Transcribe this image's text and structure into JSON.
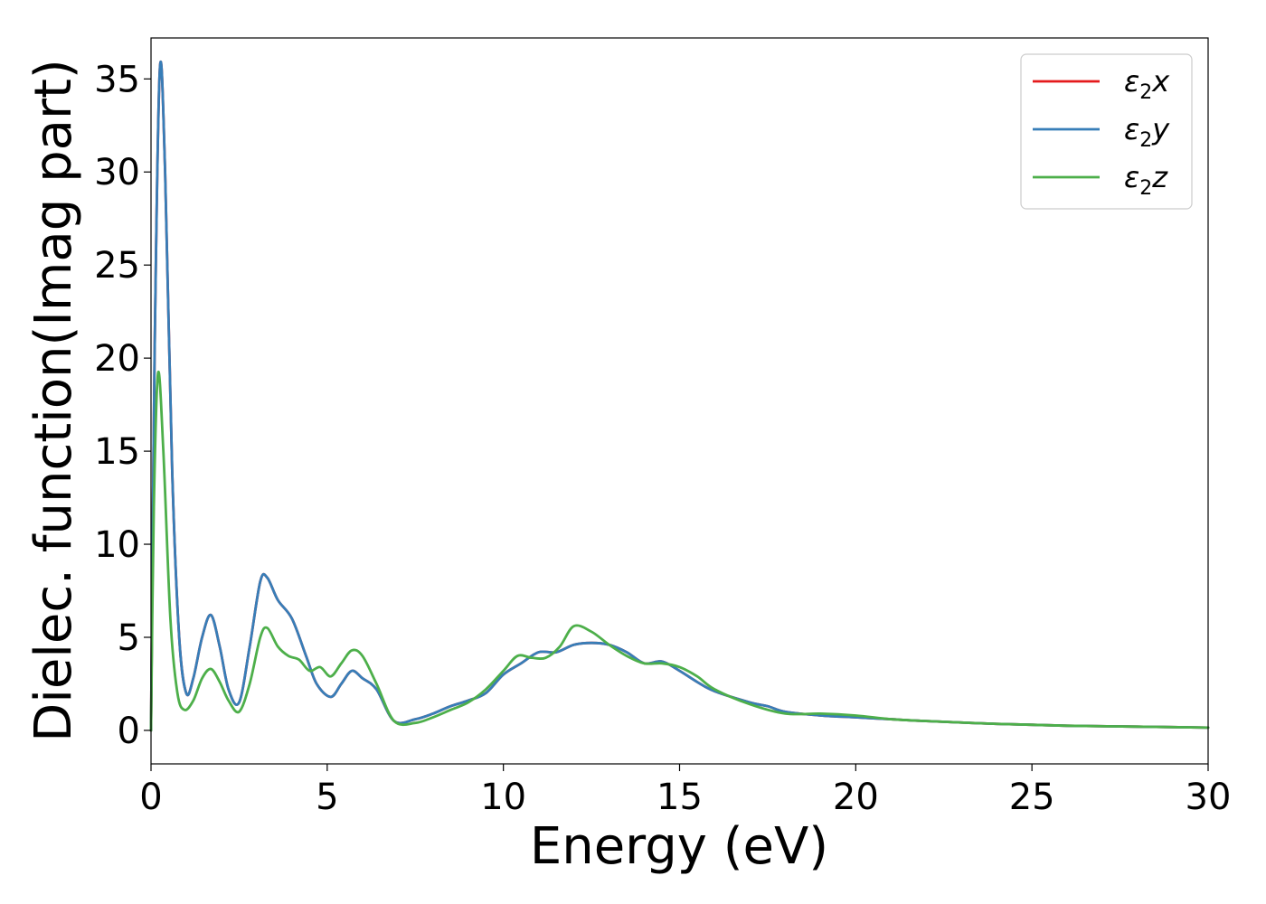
{
  "chart_data": {
    "type": "line",
    "title": "",
    "xlabel": "Energy (eV)",
    "ylabel": "Dielec. function(Imag part)",
    "xlim": [
      0,
      30
    ],
    "ylim": [
      -1.8,
      37.2
    ],
    "xticks": [
      0,
      5,
      10,
      15,
      20,
      25,
      30
    ],
    "yticks": [
      0,
      5,
      10,
      15,
      20,
      25,
      30,
      35
    ],
    "grid": false,
    "legend_position": "top-right",
    "series": [
      {
        "name": "ε2x",
        "legend_base": "ε",
        "legend_sub": "2",
        "legend_var": "x",
        "color": "#e41a1c",
        "x": [
          0,
          0.1,
          0.25,
          0.4,
          0.6,
          0.8,
          1.0,
          1.2,
          1.45,
          1.7,
          1.95,
          2.2,
          2.5,
          2.8,
          3.1,
          3.3,
          3.6,
          4.0,
          4.4,
          4.7,
          5.1,
          5.4,
          5.7,
          6.0,
          6.4,
          6.9,
          7.5,
          8.0,
          8.5,
          9.0,
          9.5,
          10.0,
          10.5,
          11.0,
          11.5,
          12.0,
          12.5,
          13.0,
          13.5,
          14.0,
          14.5,
          15.0,
          15.5,
          16.0,
          17.0,
          17.5,
          18.0,
          19.0,
          20.0,
          21.0,
          22.0,
          24.0,
          26.0,
          28.0,
          30.0
        ],
        "values": [
          0,
          20,
          35.5,
          30,
          14,
          5,
          2.0,
          2.8,
          5.0,
          6.2,
          4.5,
          2.2,
          1.5,
          4.5,
          8.0,
          8.2,
          7.0,
          6.0,
          4.0,
          2.5,
          1.8,
          2.5,
          3.2,
          2.8,
          2.2,
          0.5,
          0.6,
          0.9,
          1.3,
          1.6,
          2.0,
          3.0,
          3.6,
          4.2,
          4.2,
          4.6,
          4.7,
          4.6,
          4.2,
          3.6,
          3.7,
          3.2,
          2.6,
          2.1,
          1.5,
          1.3,
          1.0,
          0.8,
          0.7,
          0.6,
          0.5,
          0.35,
          0.25,
          0.2,
          0.15
        ]
      },
      {
        "name": "ε2y",
        "legend_base": "ε",
        "legend_sub": "2",
        "legend_var": "y",
        "color": "#377eb8",
        "x": [
          0,
          0.1,
          0.25,
          0.4,
          0.6,
          0.8,
          1.0,
          1.2,
          1.45,
          1.7,
          1.95,
          2.2,
          2.5,
          2.8,
          3.1,
          3.3,
          3.6,
          4.0,
          4.4,
          4.7,
          5.1,
          5.4,
          5.7,
          6.0,
          6.4,
          6.9,
          7.5,
          8.0,
          8.5,
          9.0,
          9.5,
          10.0,
          10.5,
          11.0,
          11.5,
          12.0,
          12.5,
          13.0,
          13.5,
          14.0,
          14.5,
          15.0,
          15.5,
          16.0,
          17.0,
          17.5,
          18.0,
          19.0,
          20.0,
          21.0,
          22.0,
          24.0,
          26.0,
          28.0,
          30.0
        ],
        "values": [
          0,
          20,
          35.5,
          30,
          14,
          5,
          2.0,
          2.8,
          5.0,
          6.2,
          4.5,
          2.2,
          1.5,
          4.5,
          8.0,
          8.2,
          7.0,
          6.0,
          4.0,
          2.5,
          1.8,
          2.5,
          3.2,
          2.8,
          2.2,
          0.5,
          0.6,
          0.9,
          1.3,
          1.6,
          2.0,
          3.0,
          3.6,
          4.2,
          4.2,
          4.6,
          4.7,
          4.6,
          4.2,
          3.6,
          3.7,
          3.2,
          2.6,
          2.1,
          1.5,
          1.3,
          1.0,
          0.8,
          0.7,
          0.6,
          0.5,
          0.35,
          0.25,
          0.2,
          0.15
        ]
      },
      {
        "name": "ε2z",
        "legend_base": "ε",
        "legend_sub": "2",
        "legend_var": "z",
        "color": "#4daf4a",
        "x": [
          0,
          0.08,
          0.2,
          0.35,
          0.55,
          0.75,
          0.95,
          1.2,
          1.45,
          1.7,
          1.95,
          2.2,
          2.5,
          2.8,
          3.1,
          3.3,
          3.6,
          3.9,
          4.2,
          4.5,
          4.8,
          5.1,
          5.4,
          5.7,
          6.0,
          6.4,
          6.9,
          7.5,
          8.0,
          8.5,
          9.0,
          9.5,
          10.0,
          10.4,
          10.8,
          11.2,
          11.6,
          12.0,
          12.5,
          13.0,
          13.5,
          14.0,
          14.5,
          15.0,
          15.5,
          16.0,
          17.0,
          18.0,
          19.0,
          20.0,
          21.0,
          22.0,
          24.0,
          26.0,
          28.0,
          30.0
        ],
        "values": [
          0,
          12,
          19.2,
          15,
          6,
          2.0,
          1.1,
          1.6,
          2.8,
          3.3,
          2.6,
          1.6,
          1.0,
          2.5,
          5.0,
          5.5,
          4.5,
          4.0,
          3.8,
          3.2,
          3.4,
          2.9,
          3.6,
          4.3,
          4.0,
          2.5,
          0.5,
          0.4,
          0.7,
          1.1,
          1.5,
          2.2,
          3.2,
          4.0,
          3.9,
          3.9,
          4.5,
          5.6,
          5.3,
          4.6,
          4.0,
          3.6,
          3.6,
          3.4,
          2.9,
          2.2,
          1.4,
          0.9,
          0.9,
          0.8,
          0.6,
          0.5,
          0.35,
          0.25,
          0.2,
          0.15
        ]
      }
    ]
  }
}
